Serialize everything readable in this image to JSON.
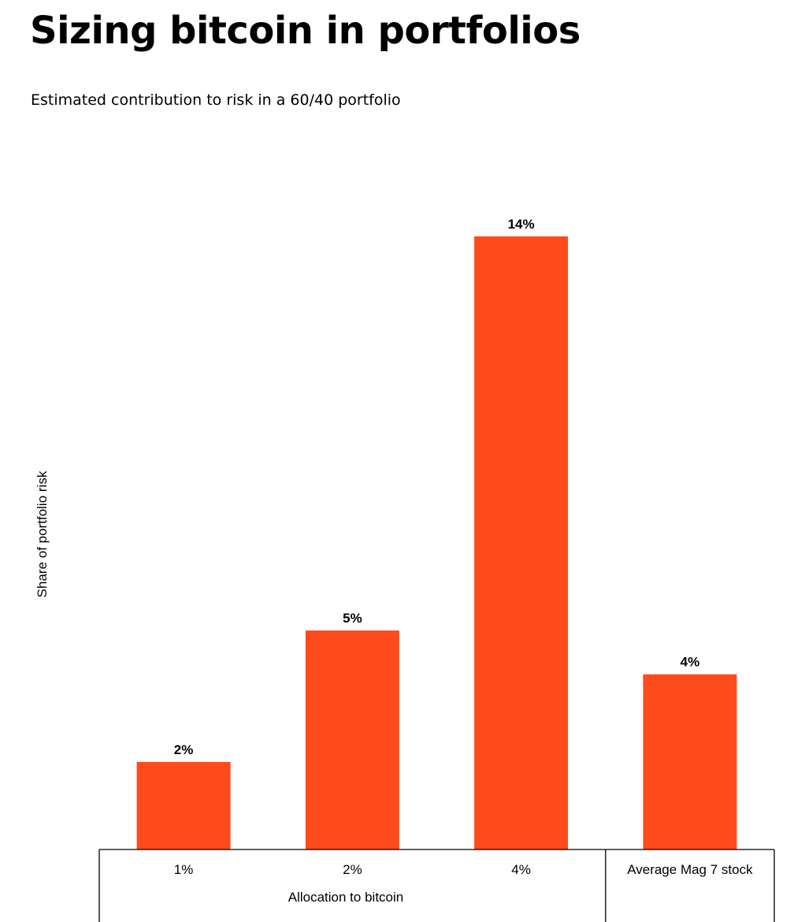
{
  "chart_data": {
    "type": "bar",
    "title": "Sizing bitcoin in portfolios",
    "subtitle": "Estimated contribution to risk in a 60/40 portfolio",
    "ylabel": "Share of portfolio risk",
    "xlabel": "Allocation to bitcoin",
    "categories": [
      "1%",
      "2%",
      "4%",
      "Average Mag 7 stock"
    ],
    "values": [
      2,
      5,
      14,
      4
    ],
    "value_labels": [
      "2%",
      "5%",
      "14%",
      "4%"
    ],
    "ylim": [
      0,
      14
    ],
    "bar_color": "#FF4A1C",
    "grid": false,
    "legend": "none"
  }
}
